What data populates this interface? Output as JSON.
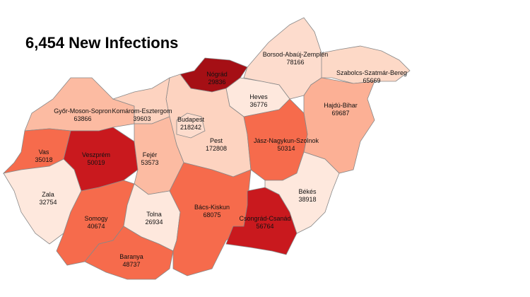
{
  "map": {
    "title": "6,454 New Infections",
    "regions": [
      {
        "name": "Borsod-Abaúj-Zemplén",
        "value": 78166,
        "color": "#fddccd"
      },
      {
        "name": "Szabolcs-Szatmár-Bereg",
        "value": 65669,
        "color": "#fdd9c7"
      },
      {
        "name": "Nógrád",
        "value": 29836,
        "color": "#a50f15"
      },
      {
        "name": "Heves",
        "value": 36776,
        "color": "#fee8dd"
      },
      {
        "name": "Hajdú-Bihar",
        "value": 69687,
        "color": "#fcb095"
      },
      {
        "name": "Pest",
        "value": 172808,
        "color": "#fdd3c0"
      },
      {
        "name": "Budapest",
        "value": 218242,
        "color": "#fddccd"
      },
      {
        "name": "Jász-Nagykun-Szolnok",
        "value": 50314,
        "color": "#f66b4c"
      },
      {
        "name": "Győr-Moson-Sopron",
        "value": 63866,
        "color": "#fcbba2"
      },
      {
        "name": "Komárom-Esztergom",
        "value": 39603,
        "color": "#fdd3c0"
      },
      {
        "name": "Vas",
        "value": 35018,
        "color": "#f66b4c"
      },
      {
        "name": "Veszprém",
        "value": 50019,
        "color": "#c9191e"
      },
      {
        "name": "Fejér",
        "value": 53573,
        "color": "#fcbba2"
      },
      {
        "name": "Zala",
        "value": 32754,
        "color": "#fee8dd"
      },
      {
        "name": "Somogy",
        "value": 40674,
        "color": "#f66b4c"
      },
      {
        "name": "Tolna",
        "value": 26934,
        "color": "#fee8dd"
      },
      {
        "name": "Baranya",
        "value": 48737,
        "color": "#f66b4c"
      },
      {
        "name": "Bács-Kiskun",
        "value": 68075,
        "color": "#f66b4c"
      },
      {
        "name": "Csongrád-Csanád",
        "value": 56764,
        "color": "#c9191e"
      },
      {
        "name": "Békés",
        "value": 38918,
        "color": "#fee8dd"
      }
    ]
  }
}
